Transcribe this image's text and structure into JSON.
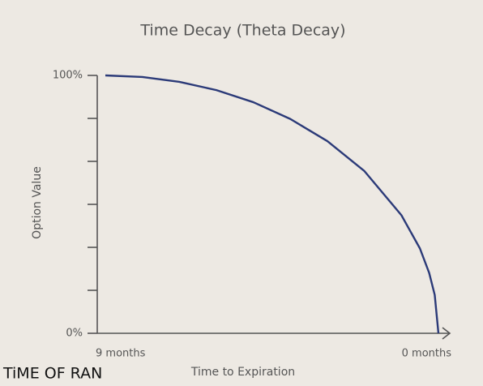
{
  "chart_data": {
    "type": "line",
    "title": "Time Decay (Theta Decay)",
    "x_label": "Time to Expiration",
    "y_label": "Option Value",
    "x": [
      9,
      8,
      7,
      6,
      5,
      4,
      3,
      2,
      1,
      0.5,
      0.25,
      0.1,
      0
    ],
    "series": [
      {
        "name": "Option Value",
        "color": "#2b3a78",
        "values": [
          100,
          99.4,
          97.5,
          94.3,
          89.6,
          83.1,
          74.5,
          62.9,
          45.8,
          32.9,
          23.4,
          14.9,
          0
        ]
      }
    ],
    "xlim": [
      9,
      0
    ],
    "xticks": [
      {
        "value": 9,
        "label": "9 months"
      },
      {
        "value": 0,
        "label": "0 months"
      }
    ],
    "ylim": [
      0,
      100
    ],
    "yticks": [
      {
        "value": 0,
        "label": "0%"
      },
      {
        "value": 100,
        "label": "100%"
      }
    ],
    "minor_yticks": [
      16.67,
      33.33,
      50,
      66.67,
      83.33
    ],
    "watermark": "TiME OF RAN"
  }
}
